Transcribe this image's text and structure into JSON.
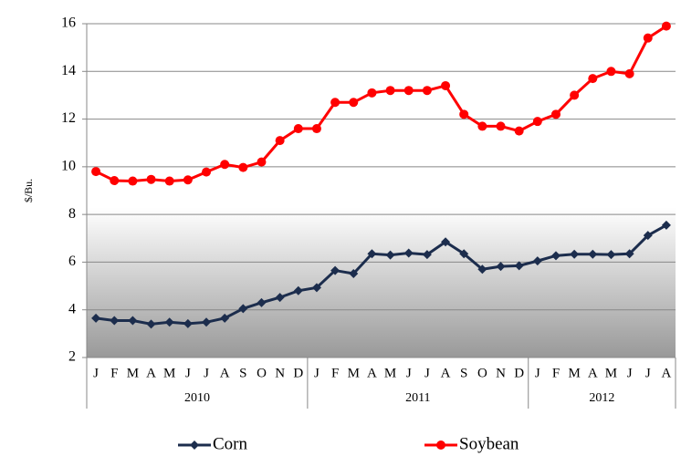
{
  "chart_data": {
    "type": "line",
    "y_label": "$/Bu.",
    "category_groups": [
      {
        "name": "2010",
        "categories": [
          "J",
          "F",
          "M",
          "A",
          "M",
          "J",
          "J",
          "A",
          "S",
          "O",
          "N",
          "D"
        ]
      },
      {
        "name": "2011",
        "categories": [
          "J",
          "F",
          "M",
          "A",
          "M",
          "J",
          "J",
          "A",
          "S",
          "O",
          "N",
          "D"
        ]
      },
      {
        "name": "2012",
        "categories": [
          "J",
          "F",
          "M",
          "A",
          "M",
          "J",
          "J",
          "A"
        ]
      }
    ],
    "series": [
      {
        "name": "Corn",
        "color": "#1c2d4d",
        "marker": "diamond",
        "values": [
          3.65,
          3.55,
          3.55,
          3.4,
          3.48,
          3.42,
          3.48,
          3.65,
          4.05,
          4.3,
          4.52,
          4.8,
          4.93,
          5.65,
          5.52,
          6.35,
          6.3,
          6.38,
          6.32,
          6.85,
          6.35,
          5.7,
          5.82,
          5.85,
          6.05,
          6.27,
          6.33,
          6.33,
          6.32,
          6.35,
          7.12,
          7.55
        ]
      },
      {
        "name": "Soybean",
        "color": "#ff0000",
        "marker": "circle",
        "values": [
          9.8,
          9.42,
          9.4,
          9.47,
          9.4,
          9.45,
          9.78,
          10.1,
          9.97,
          10.2,
          11.1,
          11.6,
          11.6,
          12.7,
          12.7,
          13.1,
          13.2,
          13.2,
          13.2,
          13.4,
          12.2,
          11.7,
          11.7,
          11.5,
          11.9,
          12.2,
          13.0,
          13.7,
          14.0,
          13.9,
          15.4,
          15.9
        ]
      }
    ],
    "ylim": [
      2,
      16
    ],
    "yticks": [
      2,
      4,
      6,
      8,
      10,
      12,
      14,
      16
    ],
    "grid": true
  }
}
